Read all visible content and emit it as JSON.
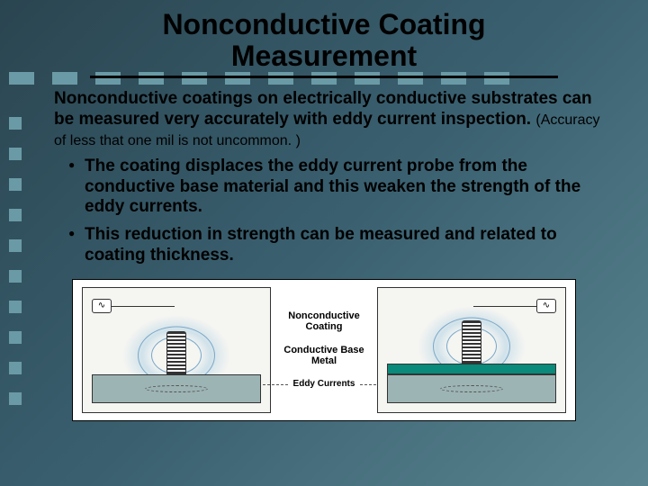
{
  "title": "Nonconductive Coating Measurement",
  "intro_main": "Nonconductive coatings on electrically conductive substrates can be measured very accurately with eddy current inspection.",
  "intro_note": "(Accuracy of less that one mil is not uncommon. )",
  "bullets": [
    "The coating displaces the eddy current probe from the conductive base material and this weaken the strength of the eddy currents.",
    "This reduction in strength can be measured and related to coating thickness."
  ],
  "diagram": {
    "label_coating": "Nonconductive Coating",
    "label_base": "Conductive Base Metal",
    "label_eddy": "Eddy Currents",
    "meter_symbol": "∿",
    "colors": {
      "coating": "#0a8a7a",
      "substrate": "#9db4b4",
      "background": "#f5f5f2",
      "field_line": "#7aa8c8"
    }
  },
  "theme": {
    "bg_gradient_from": "#2a4550",
    "bg_gradient_to": "#5a8590",
    "square_color": "#6a9aa5"
  }
}
